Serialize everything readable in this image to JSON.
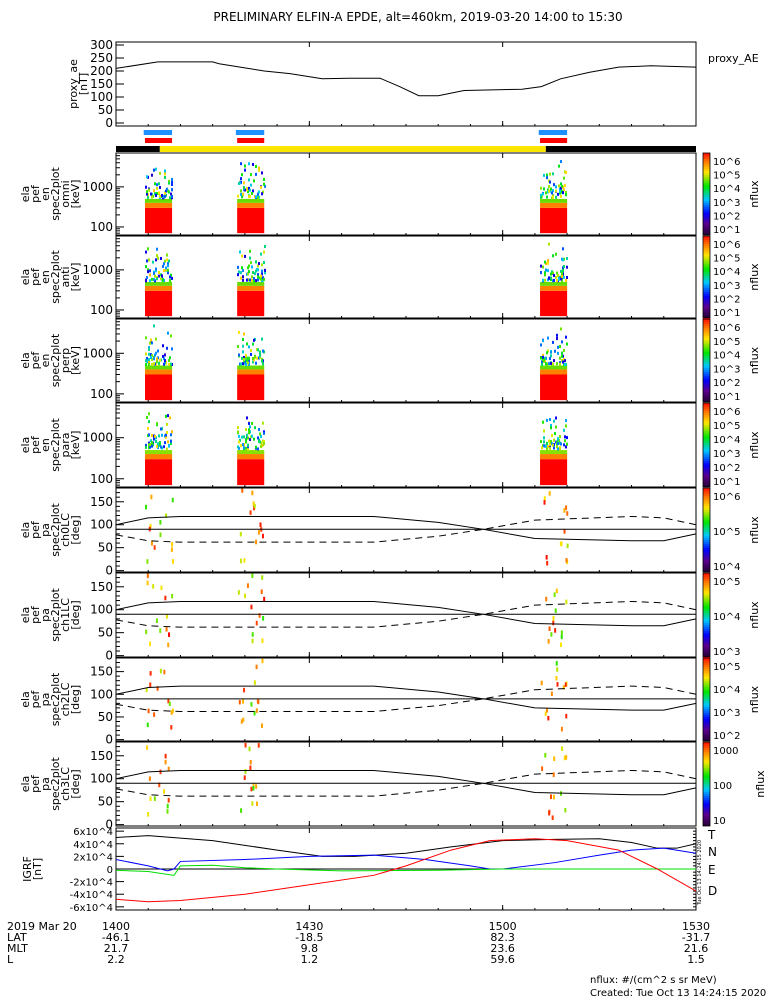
{
  "title": "PRELIMINARY ELFIN-A EPDE, alt=460km, 2019-03-20 14:00 to 15:30",
  "colors": {
    "blue_bar": "#1e90ff",
    "red_bar": "#ff0000",
    "orbit_black": "#000000",
    "orbit_yellow": "#ffe600",
    "T": "#000000",
    "N": "#0000ff",
    "E": "#00dd00",
    "D": "#ff0000"
  },
  "footer": {
    "units": "nflux: #/(cm^2 s sr MeV)",
    "created": "Created: Tue Oct 13 14:24:15 2020",
    "side_stamp": "Tue Oct 13 14:24:15 2020"
  },
  "bottom_table": {
    "rows": [
      {
        "label": "2019 Mar 20",
        "values": [
          "1400",
          "1430",
          "1500",
          "1530"
        ]
      },
      {
        "label": "LAT",
        "values": [
          "-46.1",
          "-18.5",
          "82.3",
          "-31.7"
        ]
      },
      {
        "label": "MLT",
        "values": [
          "21.7",
          "9.8",
          "23.6",
          "21.6"
        ]
      },
      {
        "label": "L",
        "values": [
          "2.2",
          "1.2",
          "59.6",
          "1.5"
        ]
      }
    ]
  },
  "chart_data": [
    {
      "type": "line",
      "id": "proxy_ae",
      "ylabel_lines": [
        "proxy_ae",
        "[nT]"
      ],
      "legend": "proxy_AE",
      "ylim": [
        0,
        300
      ],
      "yticks": [
        0,
        50,
        100,
        150,
        200,
        250,
        300
      ],
      "xlim_min": [
        0,
        90
      ],
      "x": [
        0,
        6.5,
        15,
        16,
        23,
        27,
        32,
        36,
        41,
        44,
        47,
        50,
        54,
        63,
        66,
        69,
        73.5,
        78,
        83,
        90
      ],
      "y": [
        210,
        235,
        235,
        228,
        200,
        190,
        170,
        172,
        172,
        140,
        105,
        105,
        125,
        130,
        140,
        170,
        195,
        215,
        220,
        215
      ]
    },
    {
      "type": "bars",
      "id": "science_zones",
      "units": "minutes after 1400",
      "blue_intervals": [
        [
          4.3,
          8.7
        ],
        [
          18.6,
          23.0
        ],
        [
          65.6,
          70.0
        ]
      ],
      "red_intervals": [
        [
          4.5,
          8.7
        ],
        [
          18.8,
          23.0
        ],
        [
          65.8,
          70.0
        ]
      ],
      "orbit_segments": [
        {
          "from": 0,
          "to": 6.8,
          "color": "#000000"
        },
        {
          "from": 6.8,
          "to": 66.7,
          "color": "#ffe600"
        },
        {
          "from": 66.7,
          "to": 90,
          "color": "#000000"
        }
      ]
    },
    {
      "type": "heatmap",
      "id": "en_omni",
      "ylabel_lines": [
        "ela",
        "pef",
        "en",
        "spec2plot",
        "omni",
        "[keV]"
      ],
      "yscale": "log",
      "ylim": [
        63,
        7000
      ],
      "yticks": [
        100,
        1000
      ],
      "zlabel": "nflux",
      "zticks": [
        "10^1",
        "10^2",
        "10^3",
        "10^4",
        "10^5",
        "10^6"
      ],
      "bursts": [
        [
          4.5,
          8.7
        ],
        [
          18.8,
          23.0
        ],
        [
          65.8,
          70.0
        ]
      ]
    },
    {
      "type": "heatmap",
      "id": "en_anti",
      "ylabel_lines": [
        "ela",
        "pef",
        "en",
        "spec2plot",
        "anti",
        "[keV]"
      ],
      "yscale": "log",
      "ylim": [
        63,
        7000
      ],
      "yticks": [
        100,
        1000
      ],
      "zlabel": "nflux",
      "zticks": [
        "10^1",
        "10^2",
        "10^3",
        "10^4",
        "10^5",
        "10^6"
      ],
      "bursts": [
        [
          4.5,
          8.7
        ],
        [
          18.8,
          23.0
        ],
        [
          65.8,
          70.0
        ]
      ]
    },
    {
      "type": "heatmap",
      "id": "en_perp",
      "ylabel_lines": [
        "ela",
        "pef",
        "en",
        "spec2plot",
        "perp",
        "[keV]"
      ],
      "yscale": "log",
      "ylim": [
        63,
        7000
      ],
      "yticks": [
        100,
        1000
      ],
      "zlabel": "nflux",
      "zticks": [
        "10^1",
        "10^2",
        "10^3",
        "10^4",
        "10^5",
        "10^6"
      ],
      "bursts": [
        [
          4.5,
          8.7
        ],
        [
          18.8,
          23.0
        ],
        [
          65.8,
          70.0
        ]
      ]
    },
    {
      "type": "heatmap",
      "id": "en_para",
      "ylabel_lines": [
        "ela",
        "pef",
        "en",
        "spec2plot",
        "para",
        "[keV]"
      ],
      "yscale": "log",
      "ylim": [
        63,
        7000
      ],
      "yticks": [
        100,
        1000
      ],
      "zlabel": "nflux",
      "zticks": [
        "10^1",
        "10^2",
        "10^3",
        "10^4",
        "10^5",
        "10^6"
      ],
      "bursts": [
        [
          4.5,
          8.7
        ],
        [
          18.8,
          23.0
        ],
        [
          65.8,
          70.0
        ]
      ]
    },
    {
      "type": "heatmap",
      "id": "pa_ch0",
      "ylabel_lines": [
        "ela",
        "pef",
        "pa",
        "spec2plot",
        "ch0LC",
        "[deg]"
      ],
      "ylim": [
        -3,
        180
      ],
      "yticks": [
        0,
        50,
        100,
        150
      ],
      "zlabel": "nflux",
      "zticks": [
        "10^4",
        "10^5",
        "10^6"
      ],
      "bursts": [
        [
          4.5,
          8.7
        ],
        [
          18.8,
          23.0
        ],
        [
          65.8,
          70.0
        ]
      ]
    },
    {
      "type": "heatmap",
      "id": "pa_ch1",
      "ylabel_lines": [
        "ela",
        "pef",
        "pa",
        "spec2plot",
        "ch1LC",
        "[deg]"
      ],
      "ylim": [
        -3,
        180
      ],
      "yticks": [
        0,
        50,
        100,
        150
      ],
      "zlabel": "nflux",
      "zticks": [
        "10^3",
        "10^4",
        "10^5"
      ],
      "bursts": [
        [
          4.5,
          8.7
        ],
        [
          18.8,
          23.0
        ],
        [
          65.8,
          70.0
        ]
      ]
    },
    {
      "type": "heatmap",
      "id": "pa_ch2",
      "ylabel_lines": [
        "ela",
        "pef",
        "pa",
        "spec2plot",
        "ch2LC",
        "[deg]"
      ],
      "ylim": [
        -3,
        180
      ],
      "yticks": [
        0,
        50,
        100,
        150
      ],
      "zlabel": "nflux",
      "zticks": [
        "10^2",
        "10^3",
        "10^4",
        "10^5"
      ],
      "bursts": [
        [
          4.5,
          8.7
        ],
        [
          18.8,
          23.0
        ],
        [
          65.8,
          70.0
        ]
      ]
    },
    {
      "type": "heatmap",
      "id": "pa_ch3",
      "ylabel_lines": [
        "ela",
        "pef",
        "pa",
        "spec2plot",
        "ch3LC",
        "[deg]"
      ],
      "ylim": [
        -3,
        180
      ],
      "yticks": [
        0,
        50,
        100,
        150
      ],
      "zlabel": "nflux",
      "zticks": [
        "10",
        "100",
        "1000"
      ],
      "bursts": [
        [
          4.5,
          8.7
        ],
        [
          18.8,
          23.0
        ],
        [
          65.8,
          70.0
        ]
      ]
    },
    {
      "type": "line",
      "id": "loss_cone",
      "units": "deg vs minutes after 1400",
      "x": [
        0,
        5,
        10,
        40,
        50,
        57,
        65,
        80,
        85,
        90
      ],
      "solid": [
        100,
        115,
        118,
        118,
        105,
        90,
        70,
        65,
        65,
        80
      ],
      "dashed": [
        78,
        65,
        62,
        62,
        75,
        90,
        110,
        118,
        115,
        100
      ],
      "reference": 90
    },
    {
      "type": "line",
      "id": "igrf",
      "ylabel_lines": [
        "IGRF",
        "[nT]"
      ],
      "ylim": [
        -65000,
        65000
      ],
      "yticks": [
        -60000,
        -40000,
        -20000,
        0,
        20000,
        40000,
        60000
      ],
      "ytick_labels": [
        "-6x10^4",
        "-4x10^4",
        "-2x10^4",
        "0",
        "2x10^4",
        "4x10^4",
        "6x10^4"
      ],
      "series": [
        {
          "name": "T",
          "x": [
            0,
            5,
            15,
            25,
            32,
            37,
            45,
            52,
            60,
            68,
            75,
            80,
            84,
            87,
            90
          ],
          "y": [
            50000,
            53000,
            45000,
            30000,
            20000,
            20000,
            25000,
            35000,
            45000,
            47000,
            48000,
            42000,
            33000,
            33000,
            40000
          ]
        },
        {
          "name": "N",
          "x": [
            0,
            5,
            8,
            9,
            10,
            20,
            30,
            40,
            48,
            55,
            58,
            60,
            68,
            75,
            80,
            85,
            90
          ],
          "y": [
            15000,
            5000,
            -3000,
            0,
            12000,
            15000,
            20000,
            22000,
            15000,
            5000,
            0,
            0,
            10000,
            22000,
            30000,
            33000,
            25000
          ]
        },
        {
          "name": "E",
          "x": [
            0,
            5,
            9,
            10,
            15,
            20,
            25,
            35,
            50,
            60,
            90
          ],
          "y": [
            -2000,
            -4000,
            -10000,
            5000,
            6000,
            2000,
            0,
            -3000,
            -2000,
            0,
            0
          ]
        },
        {
          "name": "D",
          "x": [
            0,
            5,
            10,
            20,
            30,
            40,
            45,
            52,
            58,
            65,
            70,
            78,
            84,
            90
          ],
          "y": [
            -48000,
            -52000,
            -50000,
            -40000,
            -25000,
            -10000,
            5000,
            30000,
            45000,
            48000,
            45000,
            30000,
            0,
            -35000
          ]
        }
      ]
    }
  ]
}
